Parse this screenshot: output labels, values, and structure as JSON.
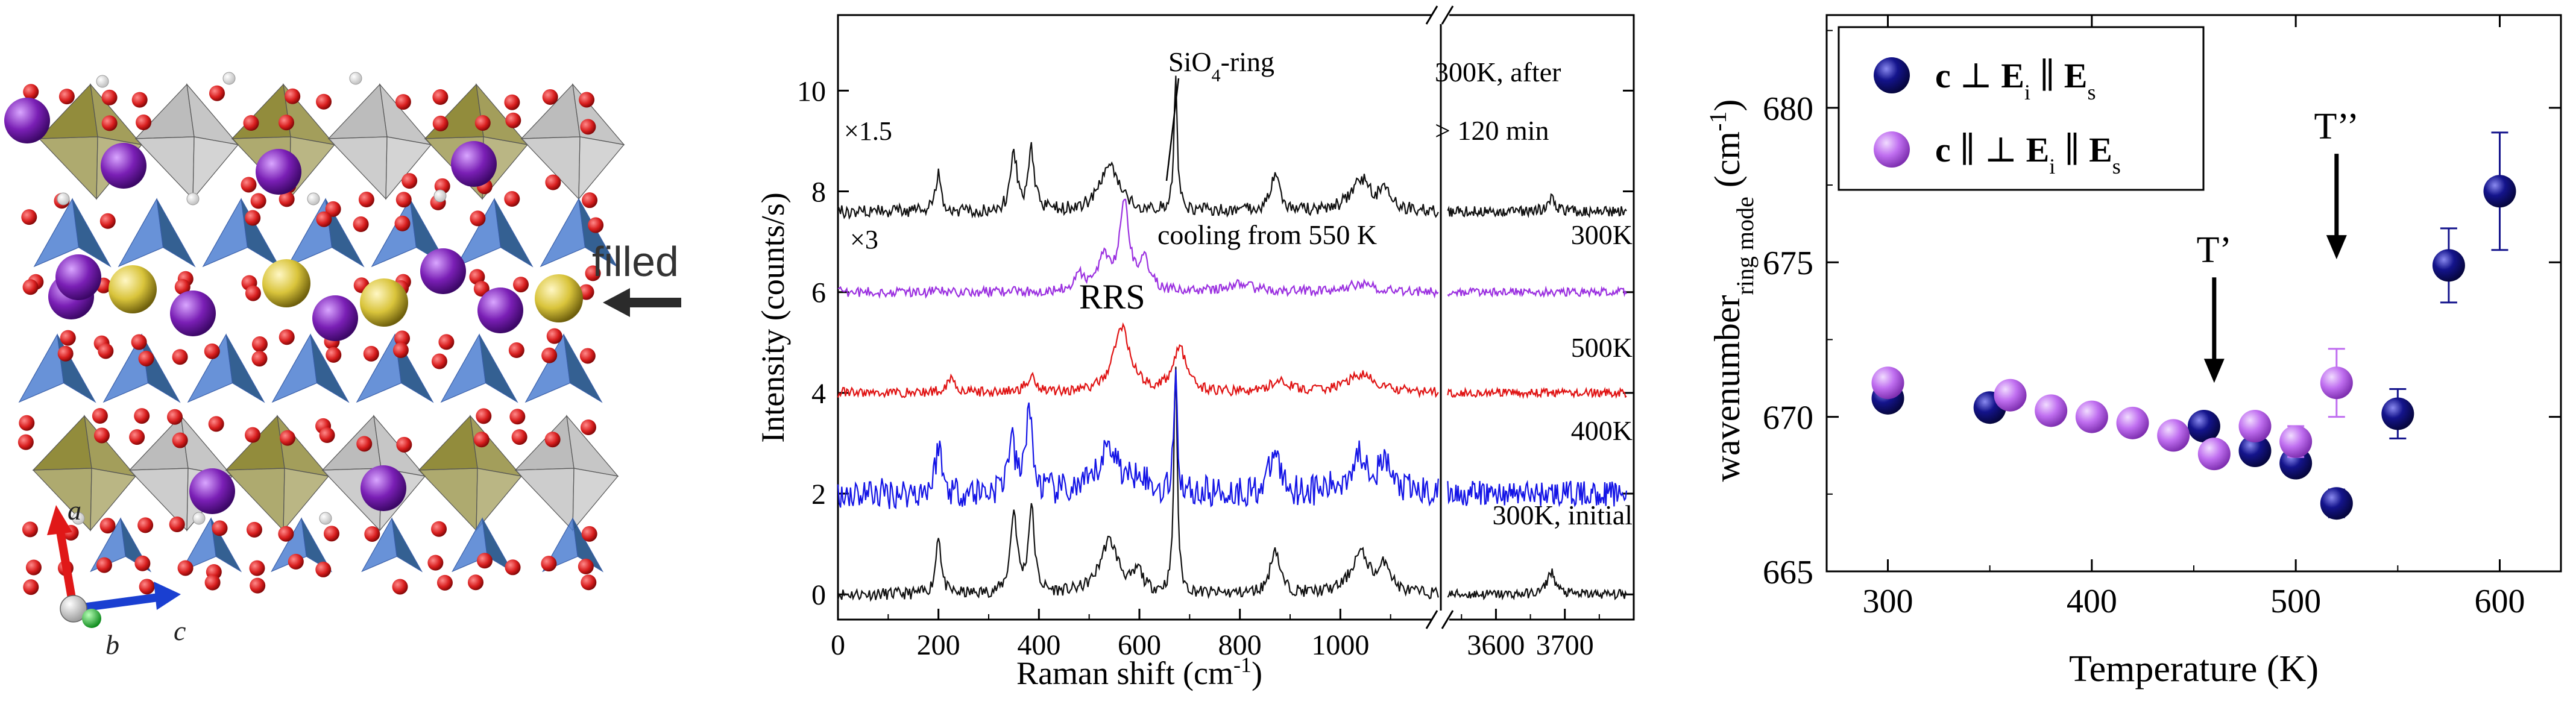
{
  "crystal": {
    "filled_label": "filled",
    "axis_a": "a",
    "axis_b": "b",
    "axis_c": "c"
  },
  "colors": {
    "oxygen": "#d81e1e",
    "potassium": "#7a1fb5",
    "sodium": "#d9c43b",
    "tetra_blue": "#4d7fd1",
    "tetra_dark": "#1e4f86",
    "octa_olive": "#8c8632",
    "octa_gray": "#b8b8b8",
    "spec_black": "#111111",
    "spec_purple": "#9b30e0",
    "spec_red": "#e01414",
    "spec_blue": "#1414e6",
    "pt_navy": "#14148c",
    "pt_violet": "#c06ff0"
  },
  "chart_data": [
    {
      "type": "line",
      "title": "",
      "xlabel": "Raman shift (cm-1)",
      "ylabel": "Intensity (counts/s)",
      "ylim": [
        -0.5,
        11.5
      ],
      "left_xlim": [
        0,
        1200
      ],
      "right_xlim": [
        3520,
        3800
      ],
      "x_ticks_left": [
        0,
        200,
        400,
        600,
        800,
        1000
      ],
      "x_ticks_right": [
        3600,
        3700
      ],
      "y_ticks": [
        0,
        2,
        4,
        6,
        8,
        10
      ],
      "series": [
        {
          "name": "300K, initial",
          "offset": 0,
          "color": "#111111",
          "noise": 0.12,
          "peaks": [
            [
              200,
              1.2,
              12
            ],
            [
              350,
              1.6,
              16
            ],
            [
              385,
              1.7,
              14
            ],
            [
              540,
              1.05,
              45
            ],
            [
              598,
              0.4,
              20
            ],
            [
              672,
              4.6,
              8
            ],
            [
              870,
              0.9,
              22
            ],
            [
              1040,
              0.8,
              45
            ],
            [
              1090,
              0.55,
              25
            ]
          ],
          "oh_peaks": [
            [
              3680,
              0.45,
              14
            ]
          ]
        },
        {
          "name": "400K",
          "offset": 2,
          "color": "#1414e6",
          "noise": 0.32,
          "peaks": [
            [
              200,
              1.0,
              14
            ],
            [
              345,
              1.0,
              18
            ],
            [
              380,
              1.75,
              14
            ],
            [
              540,
              0.95,
              45
            ],
            [
              600,
              0.45,
              22
            ],
            [
              672,
              2.7,
              7
            ],
            [
              870,
              0.8,
              25
            ],
            [
              1040,
              0.75,
              50
            ],
            [
              1090,
              0.5,
              25
            ]
          ],
          "oh_peaks": []
        },
        {
          "name": "500K",
          "offset": 4,
          "color": "#e01414",
          "noise": 0.1,
          "peaks": [
            [
              225,
              0.3,
              20
            ],
            [
              385,
              0.3,
              25
            ],
            [
              565,
              1.3,
              40
            ],
            [
              680,
              0.9,
              30
            ],
            [
              880,
              0.25,
              40
            ],
            [
              1040,
              0.35,
              70
            ]
          ],
          "oh_peaks": []
        },
        {
          "name": "300K",
          "offset": 6,
          "color": "#9b30e0",
          "noise": 0.1,
          "scale_label": "×3",
          "peaks": [
            [
              480,
              0.3,
              25
            ],
            [
              530,
              0.65,
              30
            ],
            [
              570,
              1.75,
              22
            ],
            [
              610,
              0.6,
              25
            ],
            [
              800,
              0.15,
              60
            ],
            [
              1040,
              0.15,
              70
            ]
          ],
          "oh_peaks": []
        },
        {
          "name": "300K, after > 120 min",
          "offset": 7.6,
          "color": "#111111",
          "noise": 0.13,
          "scale_label": "×1.5",
          "peaks": [
            [
              200,
              0.8,
              12
            ],
            [
              350,
              1.1,
              16
            ],
            [
              385,
              1.2,
              14
            ],
            [
              540,
              0.9,
              45
            ],
            [
              672,
              2.7,
              8
            ],
            [
              870,
              0.7,
              22
            ],
            [
              1040,
              0.65,
              45
            ],
            [
              1090,
              0.45,
              25
            ]
          ],
          "oh_peaks": [
            [
              3680,
              0.25,
              14
            ]
          ]
        }
      ],
      "annotations": [
        "SiO4-ring",
        "cooling from 550 K",
        "RRS"
      ]
    },
    {
      "type": "scatter",
      "xlabel": "Temperature (K)",
      "ylabel": "wavenumber ring mode (cm-1)",
      "xlim": [
        270,
        630
      ],
      "ylim": [
        665,
        683
      ],
      "x_ticks": [
        300,
        400,
        500,
        600
      ],
      "y_ticks": [
        665,
        670,
        675,
        680
      ],
      "series": [
        {
          "name": "c ⊥ Ei ∥ Es",
          "color": "#14148c",
          "points": [
            [
              300,
              670.6,
              0
            ],
            [
              350,
              670.3,
              0
            ],
            [
              455,
              669.7,
              0
            ],
            [
              480,
              668.9,
              0
            ],
            [
              500,
              668.5,
              0
            ],
            [
              520,
              667.2,
              0.45
            ],
            [
              550,
              670.1,
              0.8
            ],
            [
              575,
              674.9,
              1.2
            ],
            [
              600,
              677.3,
              1.9
            ]
          ]
        },
        {
          "name": "c ∥ ⊥ Ei ∥ Es",
          "color": "#c06ff0",
          "points": [
            [
              300,
              671.1,
              0
            ],
            [
              360,
              670.7,
              0
            ],
            [
              380,
              670.2,
              0
            ],
            [
              400,
              670.0,
              0.3
            ],
            [
              420,
              669.8,
              0
            ],
            [
              440,
              669.4,
              0
            ],
            [
              460,
              668.8,
              0
            ],
            [
              480,
              669.7,
              0
            ],
            [
              500,
              669.2,
              0.5
            ],
            [
              520,
              671.1,
              1.1
            ]
          ]
        }
      ],
      "annotations": [
        {
          "text": "T’",
          "x": 460
        },
        {
          "text": "T’’",
          "x": 520
        }
      ]
    }
  ]
}
